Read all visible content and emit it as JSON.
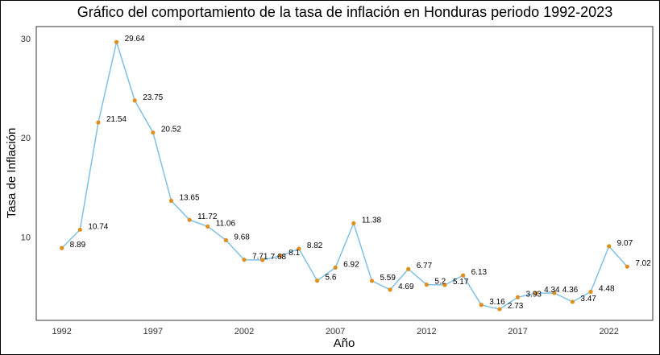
{
  "chart_data": {
    "type": "line",
    "title": "Gráfico del comportamiento de la tasa de inflación en Honduras periodo 1992-2023",
    "xlabel": "Año",
    "ylabel": "Tasa de Inflación",
    "xlim": [
      1990.6,
      2024.4
    ],
    "ylim": [
      1.6,
      31.2
    ],
    "x_ticks": [
      1992,
      1997,
      2002,
      2007,
      2012,
      2017,
      2022
    ],
    "y_ticks": [
      10,
      20,
      30
    ],
    "grid": false,
    "line_color": "#7fc0e3",
    "marker_color": "#e08e1c",
    "series": [
      {
        "x": [
          1992,
          1993,
          1994,
          1995,
          1996,
          1997,
          1998,
          1999,
          2000,
          2001,
          2002,
          2003,
          2004,
          2005,
          2006,
          2007,
          2008,
          2009,
          2010,
          2011,
          2012,
          2013,
          2014,
          2015,
          2016,
          2017,
          2018,
          2019,
          2020,
          2021,
          2022,
          2023
        ],
        "values": [
          8.89,
          10.74,
          21.54,
          29.64,
          23.75,
          20.52,
          13.65,
          11.72,
          11.06,
          9.68,
          7.71,
          7.68,
          8.1,
          8.82,
          5.6,
          6.92,
          11.38,
          5.59,
          4.69,
          6.77,
          5.2,
          5.17,
          6.13,
          3.16,
          2.73,
          3.93,
          4.34,
          4.36,
          3.47,
          4.48,
          9.07,
          7.02
        ],
        "labels": [
          "8.89",
          "10.74",
          "21.54",
          "29.64",
          "23.75",
          "20.52",
          "13.65",
          "11.72",
          "11.06",
          "9.68",
          "7.71",
          "7.68",
          "8.1",
          "8.82",
          "5.6",
          "6.92",
          "11.38",
          "5.59",
          "4.69",
          "6.77",
          "5.2",
          "5.17",
          "6.13",
          "3.16",
          "2.73",
          "3.93",
          "4.34",
          "4.36",
          "3.47",
          "4.48",
          "9.07",
          "7.02"
        ]
      }
    ]
  }
}
